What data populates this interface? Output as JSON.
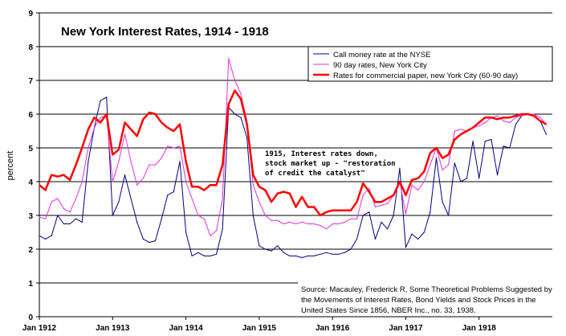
{
  "chart_data": {
    "type": "line",
    "title": "New York Interest Rates, 1914 - 1918",
    "xlabel": "",
    "ylabel": "percent",
    "xlim": [
      1912.0,
      1919.0
    ],
    "ylim": [
      0,
      9
    ],
    "x_ticks": [
      {
        "label": "Jan 1912",
        "value": 1912
      },
      {
        "label": "Jan 1913",
        "value": 1913
      },
      {
        "label": "Jan 1914",
        "value": 1914
      },
      {
        "label": "Jan 1915",
        "value": 1915
      },
      {
        "label": "Jan 1916",
        "value": 1916
      },
      {
        "label": "Jan 1917",
        "value": 1917
      },
      {
        "label": "Jan 1918",
        "value": 1918
      }
    ],
    "y_ticks": [
      "0",
      "1",
      "2",
      "3",
      "4",
      "5",
      "6",
      "7",
      "8",
      "9"
    ],
    "grid": "horizontal",
    "legend_position": "top-right",
    "series": [
      {
        "name": "Call money rate at the NYSE",
        "color": "#000080",
        "width": 1,
        "points": [
          [
            1912.0,
            2.4
          ],
          [
            1912.083,
            2.3
          ],
          [
            1912.167,
            2.4
          ],
          [
            1912.25,
            3.0
          ],
          [
            1912.333,
            2.75
          ],
          [
            1912.417,
            2.75
          ],
          [
            1912.5,
            2.9
          ],
          [
            1912.583,
            2.8
          ],
          [
            1912.667,
            4.6
          ],
          [
            1912.75,
            5.6
          ],
          [
            1912.833,
            6.4
          ],
          [
            1912.917,
            6.5
          ],
          [
            1913.0,
            3.0
          ],
          [
            1913.083,
            3.4
          ],
          [
            1913.167,
            4.2
          ],
          [
            1913.25,
            3.5
          ],
          [
            1913.333,
            2.8
          ],
          [
            1913.417,
            2.3
          ],
          [
            1913.5,
            2.2
          ],
          [
            1913.583,
            2.25
          ],
          [
            1913.667,
            2.9
          ],
          [
            1913.75,
            3.6
          ],
          [
            1913.833,
            3.7
          ],
          [
            1913.917,
            4.6
          ],
          [
            1914.0,
            2.5
          ],
          [
            1914.083,
            1.8
          ],
          [
            1914.167,
            1.9
          ],
          [
            1914.25,
            1.8
          ],
          [
            1914.333,
            1.8
          ],
          [
            1914.417,
            1.85
          ],
          [
            1914.5,
            2.6
          ],
          [
            1914.583,
            6.2
          ],
          [
            1914.667,
            6.0
          ],
          [
            1914.75,
            5.9
          ],
          [
            1914.833,
            5.3
          ],
          [
            1914.917,
            3.0
          ],
          [
            1915.0,
            2.1
          ],
          [
            1915.083,
            2.0
          ],
          [
            1915.167,
            1.95
          ],
          [
            1915.25,
            2.1
          ],
          [
            1915.333,
            1.9
          ],
          [
            1915.417,
            1.8
          ],
          [
            1915.5,
            1.8
          ],
          [
            1915.583,
            1.75
          ],
          [
            1915.667,
            1.8
          ],
          [
            1915.75,
            1.8
          ],
          [
            1915.833,
            1.85
          ],
          [
            1915.917,
            1.9
          ],
          [
            1916.0,
            1.85
          ],
          [
            1916.083,
            1.85
          ],
          [
            1916.167,
            1.9
          ],
          [
            1916.25,
            2.0
          ],
          [
            1916.333,
            2.3
          ],
          [
            1916.417,
            3.0
          ],
          [
            1916.5,
            3.1
          ],
          [
            1916.583,
            2.3
          ],
          [
            1916.667,
            2.8
          ],
          [
            1916.75,
            2.6
          ],
          [
            1916.833,
            3.0
          ],
          [
            1916.917,
            4.4
          ],
          [
            1917.0,
            2.05
          ],
          [
            1917.083,
            2.45
          ],
          [
            1917.167,
            2.3
          ],
          [
            1917.25,
            2.5
          ],
          [
            1917.333,
            3.1
          ],
          [
            1917.417,
            4.7
          ],
          [
            1917.5,
            3.4
          ],
          [
            1917.583,
            3.0
          ],
          [
            1917.667,
            4.55
          ],
          [
            1917.75,
            4.0
          ],
          [
            1917.833,
            4.1
          ],
          [
            1917.917,
            5.2
          ],
          [
            1918.0,
            4.1
          ],
          [
            1918.083,
            5.2
          ],
          [
            1918.167,
            5.25
          ],
          [
            1918.25,
            4.2
          ],
          [
            1918.333,
            5.05
          ],
          [
            1918.417,
            5.0
          ],
          [
            1918.5,
            5.7
          ],
          [
            1918.583,
            5.95
          ],
          [
            1918.667,
            6.0
          ],
          [
            1918.75,
            5.95
          ],
          [
            1918.833,
            5.8
          ],
          [
            1918.917,
            5.4
          ]
        ]
      },
      {
        "name": "90 day rates, New York City",
        "color": "#dd33dd",
        "width": 1,
        "points": [
          [
            1912.0,
            2.95
          ],
          [
            1912.083,
            2.9
          ],
          [
            1912.167,
            3.4
          ],
          [
            1912.25,
            3.5
          ],
          [
            1912.333,
            3.2
          ],
          [
            1912.417,
            3.1
          ],
          [
            1912.5,
            3.5
          ],
          [
            1912.583,
            4.0
          ],
          [
            1912.667,
            5.0
          ],
          [
            1912.75,
            5.6
          ],
          [
            1912.833,
            5.9
          ],
          [
            1912.917,
            5.95
          ],
          [
            1913.0,
            4.0
          ],
          [
            1913.083,
            4.6
          ],
          [
            1913.167,
            5.4
          ],
          [
            1913.25,
            4.6
          ],
          [
            1913.333,
            3.9
          ],
          [
            1913.417,
            4.1
          ],
          [
            1913.5,
            4.5
          ],
          [
            1913.583,
            4.5
          ],
          [
            1913.667,
            4.7
          ],
          [
            1913.75,
            5.05
          ],
          [
            1913.833,
            5.0
          ],
          [
            1913.917,
            5.05
          ],
          [
            1914.0,
            4.0
          ],
          [
            1914.083,
            3.5
          ],
          [
            1914.167,
            3.0
          ],
          [
            1914.25,
            2.9
          ],
          [
            1914.333,
            2.4
          ],
          [
            1914.417,
            2.55
          ],
          [
            1914.5,
            3.5
          ],
          [
            1914.583,
            7.65
          ],
          [
            1914.667,
            7.0
          ],
          [
            1914.75,
            6.6
          ],
          [
            1914.833,
            5.8
          ],
          [
            1914.917,
            3.9
          ],
          [
            1915.0,
            3.4
          ],
          [
            1915.083,
            3.0
          ],
          [
            1915.167,
            2.85
          ],
          [
            1915.25,
            2.85
          ],
          [
            1915.333,
            2.75
          ],
          [
            1915.417,
            2.8
          ],
          [
            1915.5,
            2.75
          ],
          [
            1915.583,
            2.8
          ],
          [
            1915.667,
            2.75
          ],
          [
            1915.75,
            2.75
          ],
          [
            1915.833,
            2.7
          ],
          [
            1915.917,
            2.6
          ],
          [
            1916.0,
            2.75
          ],
          [
            1916.083,
            2.75
          ],
          [
            1916.167,
            2.8
          ],
          [
            1916.25,
            2.9
          ],
          [
            1916.333,
            2.9
          ],
          [
            1916.417,
            3.6
          ],
          [
            1916.5,
            3.8
          ],
          [
            1916.583,
            3.25
          ],
          [
            1916.667,
            3.3
          ],
          [
            1916.75,
            3.35
          ],
          [
            1916.833,
            3.6
          ],
          [
            1916.917,
            4.0
          ],
          [
            1917.0,
            3.05
          ],
          [
            1917.083,
            3.9
          ],
          [
            1917.167,
            3.75
          ],
          [
            1917.25,
            4.0
          ],
          [
            1917.333,
            4.5
          ],
          [
            1917.417,
            5.0
          ],
          [
            1917.5,
            4.35
          ],
          [
            1917.583,
            4.5
          ],
          [
            1917.667,
            5.5
          ],
          [
            1917.75,
            5.55
          ],
          [
            1917.833,
            5.5
          ],
          [
            1917.917,
            5.6
          ],
          [
            1918.0,
            5.65
          ],
          [
            1918.083,
            5.75
          ],
          [
            1918.167,
            5.9
          ],
          [
            1918.25,
            5.95
          ],
          [
            1918.333,
            5.8
          ],
          [
            1918.417,
            5.75
          ],
          [
            1918.5,
            5.9
          ],
          [
            1918.583,
            5.95
          ],
          [
            1918.667,
            6.0
          ],
          [
            1918.75,
            6.0
          ],
          [
            1918.833,
            5.9
          ],
          [
            1918.917,
            5.7
          ]
        ]
      },
      {
        "name": "Rates for commercial paper, new York City (60-90 day)",
        "color": "#ff0000",
        "width": 2.5,
        "points": [
          [
            1912.0,
            3.9
          ],
          [
            1912.083,
            3.75
          ],
          [
            1912.167,
            4.2
          ],
          [
            1912.25,
            4.15
          ],
          [
            1912.333,
            4.2
          ],
          [
            1912.417,
            4.05
          ],
          [
            1912.5,
            4.5
          ],
          [
            1912.583,
            5.0
          ],
          [
            1912.667,
            5.55
          ],
          [
            1912.75,
            5.9
          ],
          [
            1912.833,
            5.75
          ],
          [
            1912.917,
            6.0
          ],
          [
            1913.0,
            4.8
          ],
          [
            1913.083,
            4.95
          ],
          [
            1913.167,
            5.75
          ],
          [
            1913.25,
            5.55
          ],
          [
            1913.333,
            5.35
          ],
          [
            1913.417,
            5.85
          ],
          [
            1913.5,
            6.05
          ],
          [
            1913.583,
            6.0
          ],
          [
            1913.667,
            5.75
          ],
          [
            1913.75,
            5.6
          ],
          [
            1913.833,
            5.5
          ],
          [
            1913.917,
            5.7
          ],
          [
            1914.0,
            4.6
          ],
          [
            1914.083,
            3.85
          ],
          [
            1914.167,
            3.85
          ],
          [
            1914.25,
            3.75
          ],
          [
            1914.333,
            3.9
          ],
          [
            1914.417,
            3.9
          ],
          [
            1914.5,
            4.5
          ],
          [
            1914.583,
            6.3
          ],
          [
            1914.667,
            6.7
          ],
          [
            1914.75,
            6.45
          ],
          [
            1914.833,
            5.7
          ],
          [
            1914.917,
            4.2
          ],
          [
            1915.0,
            3.85
          ],
          [
            1915.083,
            3.75
          ],
          [
            1915.167,
            3.4
          ],
          [
            1915.25,
            3.65
          ],
          [
            1915.333,
            3.7
          ],
          [
            1915.417,
            3.65
          ],
          [
            1915.5,
            3.25
          ],
          [
            1915.583,
            3.55
          ],
          [
            1915.667,
            3.25
          ],
          [
            1915.75,
            3.25
          ],
          [
            1915.833,
            3.0
          ],
          [
            1915.917,
            3.1
          ],
          [
            1916.0,
            3.15
          ],
          [
            1916.083,
            3.15
          ],
          [
            1916.167,
            3.15
          ],
          [
            1916.25,
            3.15
          ],
          [
            1916.333,
            3.4
          ],
          [
            1916.417,
            3.95
          ],
          [
            1916.5,
            3.7
          ],
          [
            1916.583,
            3.4
          ],
          [
            1916.667,
            3.4
          ],
          [
            1916.75,
            3.5
          ],
          [
            1916.833,
            3.6
          ],
          [
            1916.917,
            4.0
          ],
          [
            1917.0,
            3.6
          ],
          [
            1917.083,
            4.05
          ],
          [
            1917.167,
            4.1
          ],
          [
            1917.25,
            4.3
          ],
          [
            1917.333,
            4.85
          ],
          [
            1917.417,
            5.0
          ],
          [
            1917.5,
            4.7
          ],
          [
            1917.583,
            4.8
          ],
          [
            1917.667,
            5.25
          ],
          [
            1917.75,
            5.4
          ],
          [
            1917.833,
            5.5
          ],
          [
            1917.917,
            5.6
          ],
          [
            1918.0,
            5.75
          ],
          [
            1918.083,
            5.9
          ],
          [
            1918.167,
            5.9
          ],
          [
            1918.25,
            5.85
          ],
          [
            1918.333,
            5.9
          ],
          [
            1918.417,
            5.9
          ],
          [
            1918.5,
            5.95
          ],
          [
            1918.583,
            6.0
          ],
          [
            1918.667,
            6.0
          ],
          [
            1918.75,
            5.95
          ],
          [
            1918.833,
            5.8
          ],
          [
            1918.917,
            5.7
          ]
        ]
      }
    ],
    "annotation": [
      "1915, Interest rates down,",
      "stock market up - \"restoration",
      "of credit the catalyst\""
    ],
    "source": [
      "Source: Macauley, Frederick R, Some Theoretical Problems Suggested by",
      "the Movements of Interest Rates, Bond Yields and Stock Prices in the",
      "United States Since 1856, NBER Inc., no. 33, 1938."
    ]
  }
}
